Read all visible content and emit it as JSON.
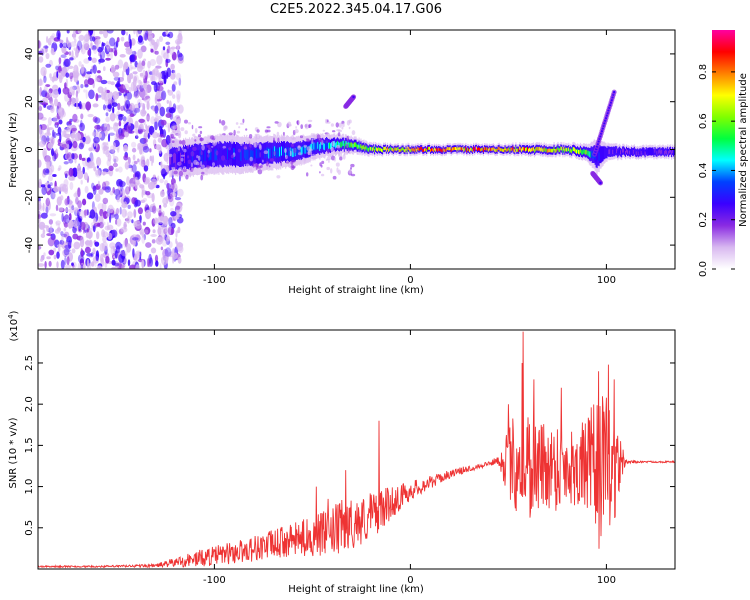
{
  "figure_title": "C2E5.2022.345.04.17.G06",
  "chart_data": [
    {
      "type": "heatmap",
      "title": "C2E5.2022.345.04.17.G06",
      "xlabel": "Height of straight line (km)",
      "ylabel": "Frequency (Hz)",
      "xlim": [
        -190,
        135
      ],
      "ylim": [
        -50,
        50
      ],
      "x_ticks": [
        -100,
        0,
        100
      ],
      "x_tick_labels": [
        "-100",
        "0",
        "100"
      ],
      "y_ticks": [
        -40,
        -20,
        0,
        20,
        40
      ],
      "y_tick_labels": [
        "-40",
        "-20",
        "0",
        "20",
        "40"
      ],
      "colorbar": {
        "label": "Normalized spectral amplitude",
        "range": [
          0,
          0.97
        ],
        "ticks": [
          0.0,
          0.2,
          0.4,
          0.6,
          0.8
        ],
        "tick_labels": [
          "0.0",
          "0.2",
          "0.4",
          "0.6",
          "0.8"
        ],
        "colormap": [
          "#ffffff",
          "#d8b8f0",
          "#8a2be2",
          "#3a00ff",
          "#0040ff",
          "#00ffff",
          "#00ff40",
          "#80ff00",
          "#ffff00",
          "#ff8000",
          "#ff0000",
          "#ff00a0"
        ]
      },
      "noise_region_x": [
        -190,
        -123
      ],
      "ridge": {
        "x": [
          -123,
          -110,
          -100,
          -90,
          -80,
          -70,
          -60,
          -50,
          -40,
          -30,
          -20,
          -10,
          0,
          10,
          20,
          30,
          40,
          50,
          60,
          70,
          80,
          90,
          95,
          100,
          110,
          120,
          135
        ],
        "center_hz": [
          -4,
          -3,
          -2,
          -2,
          -2,
          -1,
          -1,
          1,
          2,
          2,
          0,
          0,
          0,
          0,
          0,
          0,
          0,
          0,
          0,
          0,
          0,
          -1,
          -3,
          -1,
          -1,
          -1,
          -1
        ],
        "width_hz": [
          8,
          9,
          9,
          9,
          8,
          8,
          7,
          6,
          5,
          4,
          3,
          2.5,
          2.5,
          2.5,
          2.5,
          2.5,
          2.5,
          2.5,
          3,
          3,
          3,
          4,
          8,
          4,
          3,
          3,
          3
        ],
        "amplitude": [
          0.25,
          0.3,
          0.32,
          0.33,
          0.34,
          0.38,
          0.4,
          0.42,
          0.48,
          0.55,
          0.65,
          0.72,
          0.78,
          0.82,
          0.85,
          0.85,
          0.83,
          0.8,
          0.78,
          0.75,
          0.7,
          0.6,
          0.3,
          0.25,
          0.25,
          0.25,
          0.25
        ]
      },
      "features": [
        {
          "x": [
            -33,
            -29
          ],
          "hz": [
            18,
            22
          ],
          "amplitude": 0.3
        },
        {
          "x": [
            94,
            104
          ],
          "hz": [
            -2,
            24
          ],
          "amplitude": 0.3
        },
        {
          "x": [
            93,
            97
          ],
          "hz": [
            -10,
            -14
          ],
          "amplitude": 0.3
        }
      ]
    },
    {
      "type": "line",
      "title": "",
      "xlabel": "Height of straight line (km)",
      "ylabel": "SNR (10 * v/v)",
      "y_multiplier_label": "(x10",
      "y_multiplier_exp": "4",
      "y_multiplier_close": ")",
      "xlim": [
        -190,
        135
      ],
      "ylim": [
        0,
        2.9
      ],
      "x_ticks": [
        -100,
        0,
        100
      ],
      "x_tick_labels": [
        "-100",
        "0",
        "100"
      ],
      "y_ticks": [
        0.5,
        1.0,
        1.5,
        2.0,
        2.5
      ],
      "y_tick_labels": [
        "0.5",
        "1.0",
        "1.5",
        "2.0",
        "2.5"
      ],
      "series": [
        {
          "name": "SNR",
          "color": "#ee3333",
          "x": [
            -190,
            -160,
            -130,
            -120,
            -110,
            -100,
            -90,
            -80,
            -70,
            -60,
            -50,
            -40,
            -35,
            -30,
            -25,
            -20,
            -15,
            -10,
            0,
            10,
            20,
            30,
            40,
            45,
            50,
            55,
            58,
            60,
            65,
            70,
            75,
            80,
            85,
            90,
            95,
            98,
            100,
            103,
            105,
            108,
            110,
            120,
            135
          ],
          "base": [
            0.03,
            0.03,
            0.04,
            0.08,
            0.12,
            0.16,
            0.2,
            0.25,
            0.3,
            0.35,
            0.4,
            0.45,
            0.5,
            0.55,
            0.58,
            0.65,
            0.72,
            0.8,
            0.95,
            1.05,
            1.15,
            1.22,
            1.28,
            1.32,
            1.3,
            1.3,
            1.3,
            1.28,
            1.25,
            1.25,
            1.25,
            1.25,
            1.25,
            1.25,
            1.2,
            1.15,
            1.2,
            1.22,
            1.25,
            1.3,
            1.3,
            1.3,
            1.3
          ],
          "noise": [
            0.01,
            0.01,
            0.02,
            0.06,
            0.1,
            0.12,
            0.14,
            0.16,
            0.18,
            0.2,
            0.25,
            0.3,
            0.35,
            0.3,
            0.3,
            0.3,
            0.25,
            0.2,
            0.12,
            0.08,
            0.05,
            0.04,
            0.03,
            0.05,
            0.45,
            0.7,
            0.8,
            0.7,
            0.6,
            0.55,
            0.55,
            0.5,
            0.5,
            0.6,
            0.9,
            1.0,
            0.9,
            0.8,
            0.6,
            0.2,
            0.02,
            0.01,
            0.01
          ],
          "peaks": [
            {
              "x": -48,
              "value": 1.0
            },
            {
              "x": -42,
              "value": 0.85
            },
            {
              "x": -33,
              "value": 1.2
            },
            {
              "x": -16,
              "value": 1.8
            },
            {
              "x": 50,
              "value": 2.0
            },
            {
              "x": 57,
              "value": 2.5
            },
            {
              "x": 57.5,
              "value": 2.88
            },
            {
              "x": 63,
              "value": 2.3
            },
            {
              "x": 77,
              "value": 2.2
            },
            {
              "x": 96,
              "value": 2.4
            },
            {
              "x": 101,
              "value": 2.48
            },
            {
              "x": 104,
              "value": 2.3
            }
          ]
        }
      ]
    }
  ]
}
